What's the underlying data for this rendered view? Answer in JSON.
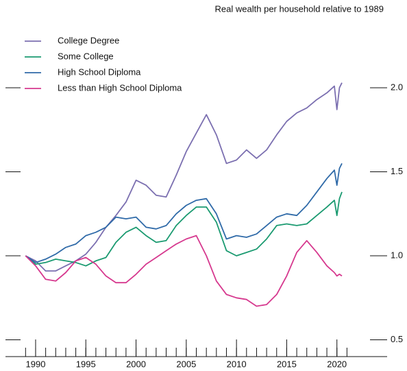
{
  "chart_data": {
    "type": "line",
    "title": "Real wealth per household relative to 1989",
    "x": [
      1989,
      1990,
      1991,
      1992,
      1993,
      1994,
      1995,
      1996,
      1997,
      1998,
      1999,
      2000,
      2001,
      2002,
      2003,
      2004,
      2005,
      2006,
      2007,
      2008,
      2009,
      2010,
      2011,
      2012,
      2013,
      2014,
      2015,
      2016,
      2017,
      2018,
      2019,
      2019.75,
      2020,
      2020.25,
      2020.5
    ],
    "series": [
      {
        "name": "College Degree",
        "color": "#7b6fb0",
        "values": [
          1.0,
          0.97,
          0.91,
          0.91,
          0.94,
          0.97,
          1.01,
          1.08,
          1.17,
          1.24,
          1.32,
          1.45,
          1.42,
          1.36,
          1.35,
          1.48,
          1.62,
          1.73,
          1.84,
          1.72,
          1.55,
          1.57,
          1.63,
          1.58,
          1.63,
          1.72,
          1.8,
          1.85,
          1.88,
          1.93,
          1.97,
          2.01,
          1.87,
          2.0,
          2.03
        ]
      },
      {
        "name": "Some College",
        "color": "#1a9a70",
        "values": [
          1.0,
          0.95,
          0.96,
          0.98,
          0.97,
          0.96,
          0.94,
          0.97,
          0.99,
          1.08,
          1.14,
          1.17,
          1.12,
          1.08,
          1.09,
          1.18,
          1.24,
          1.29,
          1.29,
          1.2,
          1.03,
          1.0,
          1.02,
          1.04,
          1.1,
          1.18,
          1.19,
          1.18,
          1.19,
          1.24,
          1.29,
          1.33,
          1.24,
          1.34,
          1.38
        ]
      },
      {
        "name": "High School Diploma",
        "color": "#2f6aa8",
        "values": [
          1.0,
          0.96,
          0.98,
          1.01,
          1.05,
          1.07,
          1.12,
          1.14,
          1.17,
          1.23,
          1.22,
          1.23,
          1.17,
          1.16,
          1.18,
          1.25,
          1.3,
          1.33,
          1.34,
          1.25,
          1.1,
          1.12,
          1.11,
          1.13,
          1.18,
          1.23,
          1.25,
          1.24,
          1.3,
          1.38,
          1.46,
          1.51,
          1.42,
          1.52,
          1.55
        ]
      },
      {
        "name": "Less than High School Diploma",
        "color": "#d6388e",
        "values": [
          1.0,
          0.94,
          0.86,
          0.85,
          0.9,
          0.97,
          0.99,
          0.95,
          0.88,
          0.84,
          0.84,
          0.89,
          0.95,
          0.99,
          1.03,
          1.07,
          1.1,
          1.12,
          1.0,
          0.85,
          0.77,
          0.75,
          0.74,
          0.7,
          0.71,
          0.77,
          0.88,
          1.02,
          1.09,
          1.02,
          0.94,
          0.9,
          0.88,
          0.89,
          0.88
        ]
      }
    ],
    "xlim": [
      1987,
      2025
    ],
    "xticks": [
      1990,
      1995,
      2000,
      2005,
      2010,
      2015,
      2020
    ],
    "xminor_ticks": [
      1989,
      1990,
      1991,
      1992,
      1993,
      1994,
      1995,
      1996,
      1997,
      1998,
      1999,
      2000,
      2001,
      2002,
      2003,
      2004,
      2005,
      2006,
      2007,
      2008,
      2009,
      2010,
      2011,
      2012,
      2013,
      2014,
      2015,
      2016,
      2017,
      2018,
      2019,
      2020,
      2021
    ],
    "ylim": [
      0.4,
      2.4
    ],
    "yticks": [
      {
        "value": 0.5,
        "label": "0.5"
      },
      {
        "value": 1,
        "label": "1.0"
      },
      {
        "value": 1.5,
        "label": "1.5"
      },
      {
        "value": 2,
        "label": "2.0"
      }
    ],
    "legend": "upper left"
  }
}
